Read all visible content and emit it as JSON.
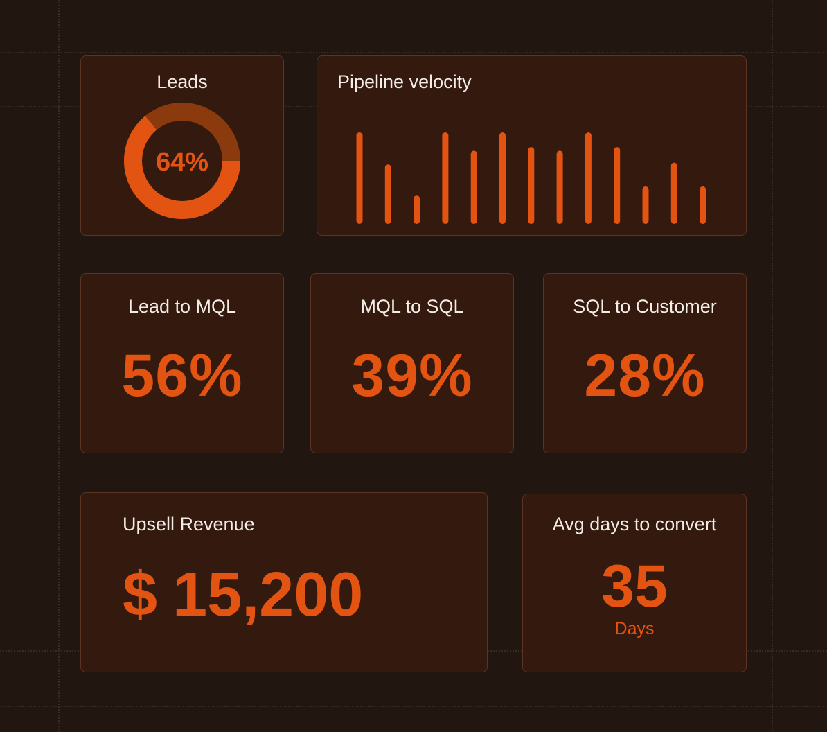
{
  "colors": {
    "background": "#221611",
    "card": "#33190e",
    "card_border": "#5c3424",
    "accent": "#e35312",
    "accent_dim": "#8a3a0d",
    "text": "#f4ece6"
  },
  "leads": {
    "title": "Leads",
    "value_label": "64%",
    "value": 0.64
  },
  "pipeline": {
    "title": "Pipeline velocity",
    "chart_data": {
      "type": "bar",
      "values": [
        100,
        65,
        31,
        100,
        80,
        100,
        84,
        80,
        100,
        84,
        41,
        67,
        41
      ],
      "ylim": [
        0,
        100
      ],
      "grid": false
    }
  },
  "lead_to_mql": {
    "title": "Lead to MQL",
    "value": "56%"
  },
  "mql_to_sql": {
    "title": "MQL to SQL",
    "value": "39%"
  },
  "sql_to_customer": {
    "title": "SQL to Customer",
    "value": "28%"
  },
  "upsell": {
    "title": "Upsell Revenue",
    "currency": "$",
    "value": "15,200"
  },
  "avg_days": {
    "title": "Avg days to convert",
    "value": "35",
    "unit": "Days"
  }
}
